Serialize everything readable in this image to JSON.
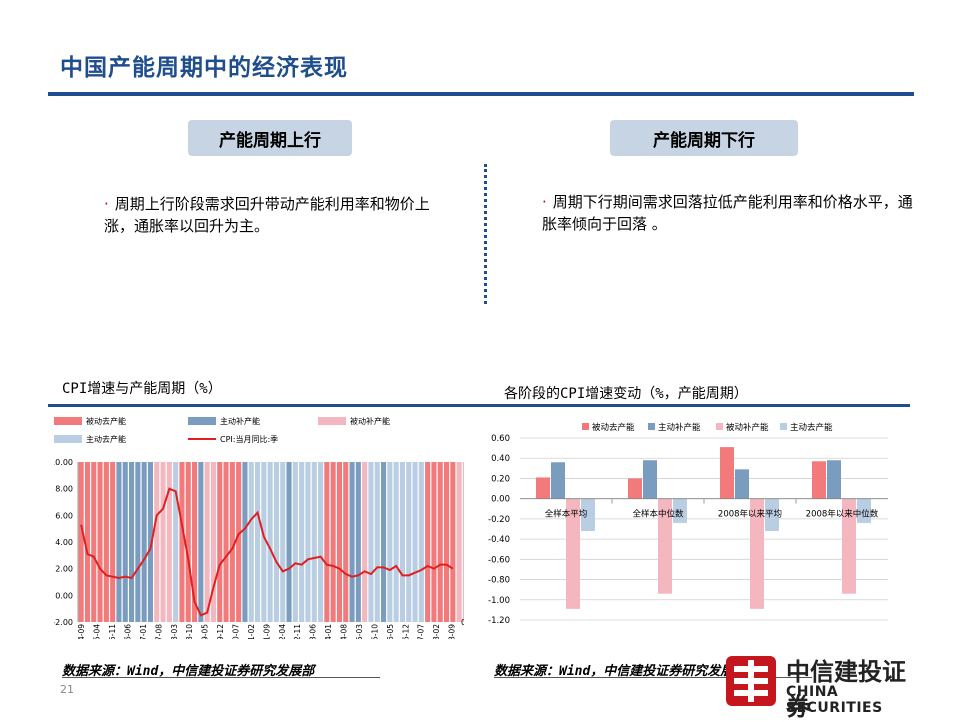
{
  "title": "中国产能周期中的经济表现",
  "left": {
    "pill": "产能周期上行",
    "bullet": "周期上行阶段需求回升带动产能利用率和物价上涨，通胀率以回升为主。"
  },
  "right": {
    "pill": "产能周期下行",
    "bullet": "周期下行期间需求回落拉低产能利用率和价格水平，通胀率倾向于回落 。"
  },
  "bullet_mark": "·",
  "page_number": "21",
  "logo": {
    "cn": "中信建投证券",
    "en": "CHINA SECURITIES"
  },
  "colors": {
    "brand": "#1f4e8c",
    "red_bar": "#f27a7a",
    "blue_bar": "#7a9cbf",
    "pink_bar": "#f5b7bf",
    "lightblue_bar": "#b9cde3",
    "cpi_line": "#e02020"
  },
  "chart_data": [
    {
      "type": "bar",
      "heading": "CPI增速与产能周期（%）",
      "source": "数据来源：Wind，中信建投证券研究发展部",
      "legend": [
        "被动去产能",
        "主动补产能",
        "被动补产能",
        "主动去产能",
        "CPI:当月同比:季"
      ],
      "ylim": [
        -2,
        10
      ],
      "yticks": [
        "10.00",
        "8.00",
        "6.00",
        "4.00",
        "2.00",
        "0.00",
        "-2.00"
      ],
      "right_axis_tick": "0",
      "x_tick_labels": [
        "2004-09",
        "2005-04",
        "2005-11",
        "2006-06",
        "2007-01",
        "2007-08",
        "2008-03",
        "2008-10",
        "2009-05",
        "2009-12",
        "2010-07",
        "2011-02",
        "2011-09",
        "2012-04",
        "2012-11",
        "2013-06",
        "2014-01",
        "2014-08",
        "2015-03",
        "2015-10",
        "2016-05",
        "2016-12",
        "2017-07",
        "2018-02",
        "2018-09"
      ],
      "phases": [
        {
          "phase": "被动去产能",
          "count": 6
        },
        {
          "phase": "主动补产能",
          "count": 6
        },
        {
          "phase": "被动补产能",
          "count": 3
        },
        {
          "phase": "主动去产能",
          "count": 1
        },
        {
          "phase": "被动去产能",
          "count": 3
        },
        {
          "phase": "主动补产能",
          "count": 1
        },
        {
          "phase": "被动补产能",
          "count": 2
        },
        {
          "phase": "被动去产能",
          "count": 4
        },
        {
          "phase": "主动补产能",
          "count": 1
        },
        {
          "phase": "主动去产能",
          "count": 6
        },
        {
          "phase": "主动补产能",
          "count": 1
        },
        {
          "phase": "主动去产能",
          "count": 5
        },
        {
          "phase": "被动去产能",
          "count": 4
        },
        {
          "phase": "主动补产能",
          "count": 2
        },
        {
          "phase": "被动补产能",
          "count": 1
        },
        {
          "phase": "主动去产能",
          "count": 2
        },
        {
          "phase": "主动补产能",
          "count": 1
        },
        {
          "phase": "主动去产能",
          "count": 6
        },
        {
          "phase": "被动去产能",
          "count": 5
        },
        {
          "phase": "被动补产能",
          "count": 2
        },
        {
          "phase": "主动补产能",
          "count": 2
        },
        {
          "phase": "被动去产能",
          "count": 1
        },
        {
          "phase": "主动去产能",
          "count": 2
        }
      ],
      "series": [
        {
          "name": "CPI:当月同比:季",
          "values": [
            5.3,
            3.1,
            2.9,
            2.0,
            1.5,
            1.4,
            1.3,
            1.4,
            1.3,
            2.0,
            2.7,
            3.5,
            6.0,
            6.5,
            8.0,
            7.8,
            5.3,
            2.7,
            -0.5,
            -1.5,
            -1.3,
            0.6,
            2.3,
            2.9,
            3.5,
            4.6,
            5.0,
            5.7,
            6.2,
            4.4,
            3.5,
            2.5,
            1.8,
            2.0,
            2.4,
            2.3,
            2.7,
            2.8,
            2.9,
            2.3,
            2.2,
            2.0,
            1.6,
            1.4,
            1.5,
            1.8,
            1.6,
            2.1,
            2.1,
            1.9,
            2.2,
            1.5,
            1.5,
            1.7,
            1.9,
            2.2,
            2.0,
            2.3,
            2.3,
            2.0
          ]
        }
      ]
    },
    {
      "type": "bar",
      "heading": "各阶段的CPI增速变动（%，产能周期）",
      "source": "数据来源：Wind，中信建投证券研究发展部",
      "categories": [
        "全样本平均",
        "全样本中位数",
        "2008年以来平均",
        "2008年以来中位数"
      ],
      "ylim": [
        -1.2,
        0.6
      ],
      "yticks": [
        "0.60",
        "0.40",
        "0.20",
        "0.00",
        "-0.20",
        "-0.40",
        "-0.60",
        "-0.80",
        "-1.00",
        "-1.20"
      ],
      "series": [
        {
          "name": "被动去产能",
          "values": [
            0.21,
            0.2,
            0.51,
            0.37
          ]
        },
        {
          "name": "主动补产能",
          "values": [
            0.36,
            0.38,
            0.29,
            0.38
          ]
        },
        {
          "name": "被动补产能",
          "values": [
            -1.09,
            -0.94,
            -1.09,
            -0.94
          ]
        },
        {
          "name": "主动去产能",
          "values": [
            -0.32,
            -0.24,
            -0.32,
            -0.24
          ]
        }
      ]
    }
  ]
}
